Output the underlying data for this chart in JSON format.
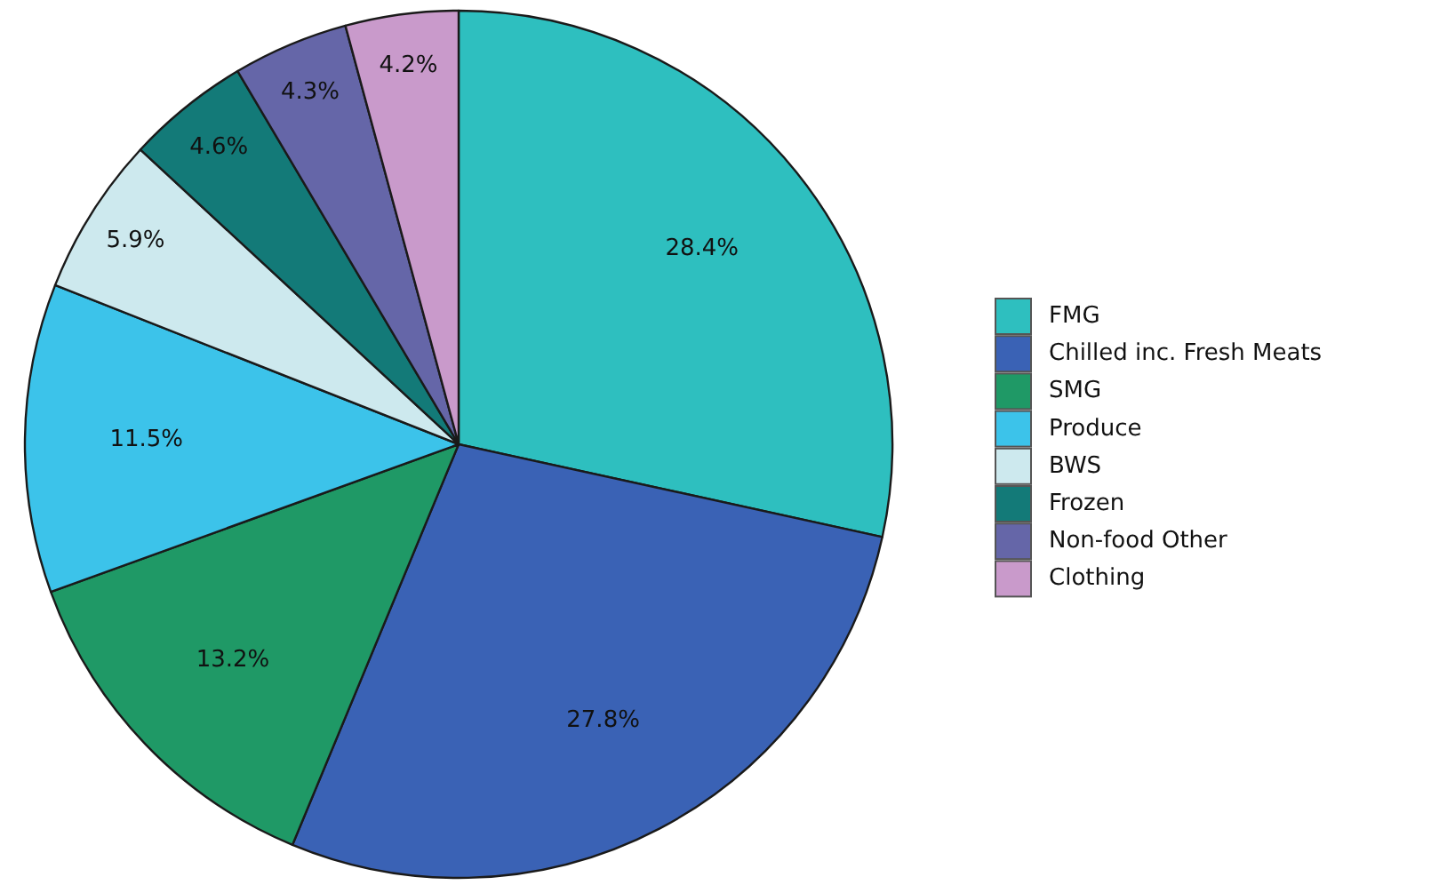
{
  "chart_data": {
    "type": "pie",
    "categories": [
      "FMG",
      "Chilled inc. Fresh Meats",
      "SMG",
      "Produce",
      "BWS",
      "Frozen",
      "Non-food Other",
      "Clothing"
    ],
    "values": [
      28.4,
      27.8,
      13.2,
      11.5,
      5.9,
      4.6,
      4.3,
      4.2
    ],
    "colors": [
      "#2ebfbf",
      "#3a62b5",
      "#1f9966",
      "#3cc3ea",
      "#cde9ee",
      "#137a78",
      "#6566a8",
      "#c99acb"
    ],
    "value_labels": [
      "28.4%",
      "27.8%",
      "13.2%",
      "11.5%",
      "5.9%",
      "4.6%",
      "4.3%",
      "4.2%"
    ],
    "legend": "right"
  }
}
